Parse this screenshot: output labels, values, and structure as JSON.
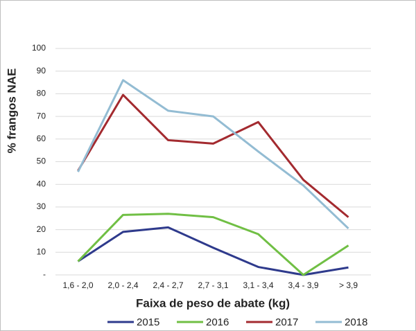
{
  "chart_data": {
    "type": "line",
    "y_label": "% frangos NAE",
    "x_label": "Faixa de peso de abate (kg)",
    "categories": [
      "1,6 - 2,0",
      "2,0 - 2,4",
      "2,4 - 2,7",
      "2,7 - 3,1",
      "3,1 - 3,4",
      "3,4 - 3,9",
      "> 3,9"
    ],
    "series": [
      {
        "name": "2015",
        "color": "#2e3a8c",
        "values": [
          6,
          19,
          21,
          12,
          3.5,
          0,
          3.3
        ]
      },
      {
        "name": "2016",
        "color": "#70bf44",
        "values": [
          6,
          26.5,
          27,
          25.5,
          18,
          0,
          13
        ]
      },
      {
        "name": "2017",
        "color": "#a32a2f",
        "values": [
          46,
          79.5,
          59.5,
          58,
          67.5,
          42,
          25.5
        ]
      },
      {
        "name": "2018",
        "color": "#93bcd3",
        "values": [
          45.5,
          86,
          72.5,
          70,
          54.5,
          39.5,
          20.5
        ]
      }
    ],
    "ylim": [
      0,
      100
    ],
    "yticks": [
      {
        "value": 0,
        "label": "-"
      },
      10,
      20,
      30,
      40,
      50,
      60,
      70,
      80,
      90,
      100
    ],
    "grid": true,
    "legend": "bottom"
  }
}
